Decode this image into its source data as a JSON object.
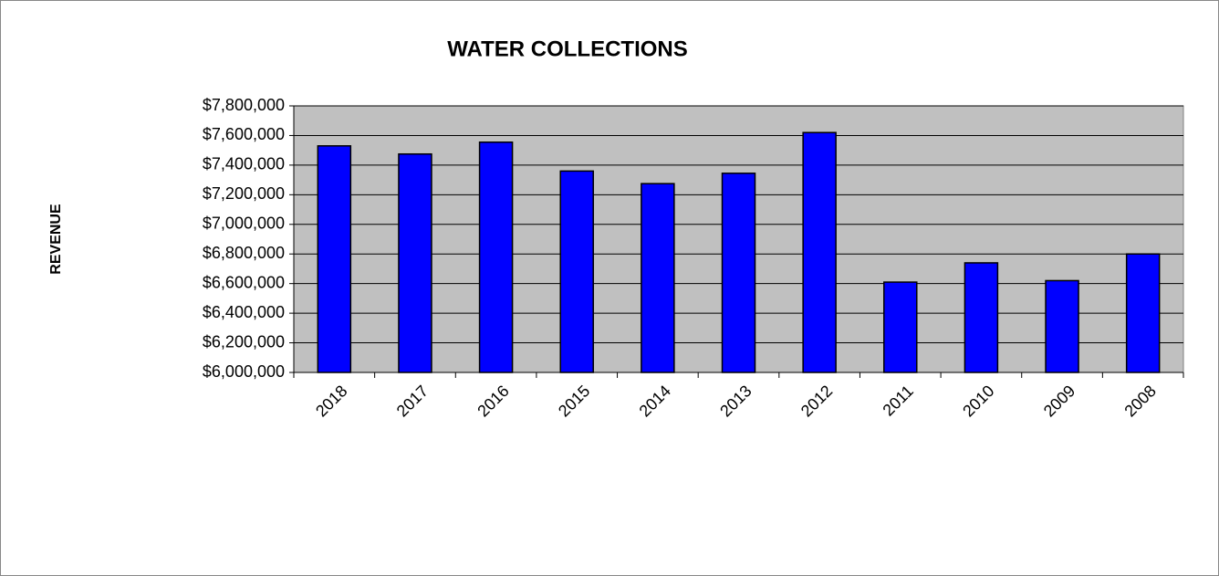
{
  "chart_data": {
    "type": "bar",
    "title": "WATER COLLECTIONS",
    "y_label": "REVENUE",
    "categories": [
      "2018",
      "2017",
      "2016",
      "2015",
      "2014",
      "2013",
      "2012",
      "2011",
      "2010",
      "2009",
      "2008"
    ],
    "values": [
      7530000,
      7475000,
      7555000,
      7360000,
      7275000,
      7345000,
      7620000,
      6610000,
      6740000,
      6620000,
      6800000
    ],
    "color": "#0000ff",
    "ylim": [
      6000000,
      7800000
    ],
    "yticks": [
      {
        "value": 6000000,
        "label": "$6,000,000"
      },
      {
        "value": 6200000,
        "label": "$6,200,000"
      },
      {
        "value": 6400000,
        "label": "$6,400,000"
      },
      {
        "value": 6600000,
        "label": "$6,600,000"
      },
      {
        "value": 6800000,
        "label": "$6,800,000"
      },
      {
        "value": 7000000,
        "label": "$7,000,000"
      },
      {
        "value": 7200000,
        "label": "$7,200,000"
      },
      {
        "value": 7400000,
        "label": "$7,400,000"
      },
      {
        "value": 7600000,
        "label": "$7,600,000"
      },
      {
        "value": 7800000,
        "label": "$7,800,000"
      }
    ],
    "grid": true
  }
}
